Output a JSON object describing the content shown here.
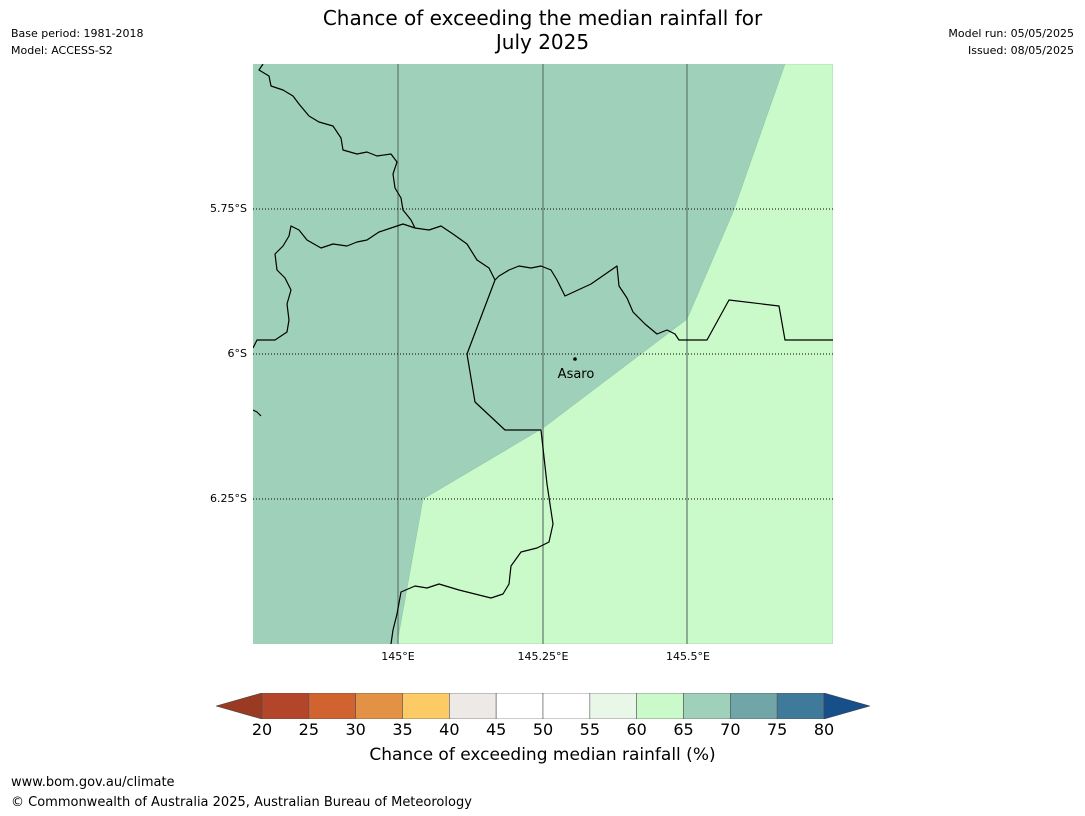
{
  "header": {
    "title_line1": "Chance of exceeding the median rainfall for",
    "title_line2": "July 2025",
    "base_period": "Base period: 1981-2018",
    "model": "Model: ACCESS-S2",
    "model_run": "Model run: 05/05/2025",
    "issued": "Issued: 08/05/2025"
  },
  "map": {
    "lat_labels": [
      "5.75°S",
      "6°S",
      "6.25°S"
    ],
    "lon_labels": [
      "145°E",
      "145.25°E",
      "145.5°E"
    ],
    "place": {
      "name": "Asaro",
      "lon": 145.33,
      "lat": -6.01
    },
    "zones": [
      {
        "category": "65-70",
        "color": "#9fd1ba"
      },
      {
        "category": "60-65",
        "color": "#caf9ca"
      }
    ]
  },
  "colorbar": {
    "ticks": [
      "20",
      "25",
      "30",
      "35",
      "40",
      "45",
      "50",
      "55",
      "60",
      "65",
      "70",
      "75",
      "80"
    ],
    "colors": [
      "#b3462a",
      "#d0632f",
      "#e39245",
      "#fdcb66",
      "#ece9e6",
      "#ffffff",
      "#ffffff",
      "#e9f7e9",
      "#caf9ca",
      "#9fd1ba",
      "#70a6a7",
      "#3f7a9b"
    ],
    "under_color": "#9a3a22",
    "over_color": "#164f8a",
    "label": "Chance of exceeding median rainfall (%)"
  },
  "footer": {
    "url": "www.bom.gov.au/climate",
    "copyright": "© Commonwealth of Australia 2025, Australian Bureau of Meteorology"
  }
}
